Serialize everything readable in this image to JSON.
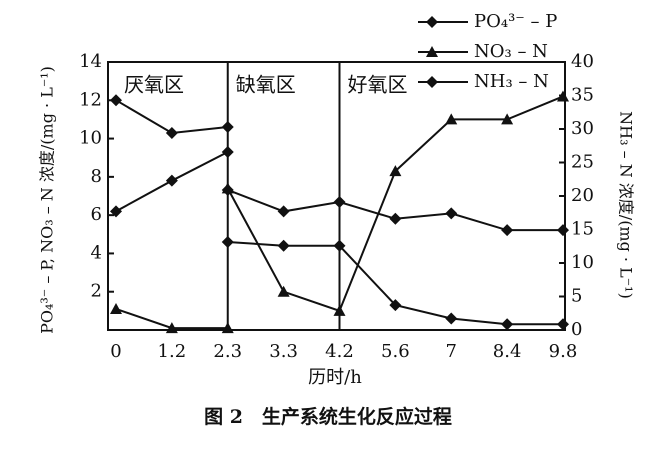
{
  "chart_data": {
    "type": "line",
    "categories": [
      "0",
      "1.2",
      "2.3",
      "3.3",
      "4.2",
      "5.6",
      "7",
      "8.4",
      "9.8"
    ],
    "x_label": "历时/h",
    "y_label": "PO₄³⁻ – P, NO₃ – N 浓度/(mg · L⁻¹)",
    "y2_label": "NH₃ – N 浓度/(mg · L⁻¹)",
    "caption": "图 2　生产系统生化反应过程",
    "ylim": [
      0,
      14
    ],
    "yticks": [
      2,
      4,
      6,
      8,
      10,
      12,
      14
    ],
    "y2lim": [
      0,
      40
    ],
    "y2ticks": [
      0,
      5,
      10,
      15,
      20,
      25,
      30,
      35,
      40
    ],
    "zones": [
      {
        "label": "厌氧区",
        "start": 0
      },
      {
        "label": "缺氧区",
        "start": 2.3
      },
      {
        "label": "好氧区",
        "start": 4.2
      }
    ],
    "series": [
      {
        "name": "PO₄³⁻ – P",
        "color": "#111111",
        "marker": "diamond",
        "segments": [
          [
            6.2,
            7.8,
            9.3,
            null,
            null,
            null,
            null,
            null,
            null
          ],
          [
            null,
            null,
            4.6,
            4.4,
            4.4,
            1.3,
            0.6,
            0.3,
            0.3
          ]
        ]
      },
      {
        "name": "NO₃ – N",
        "color": "#111111",
        "marker": "triangle",
        "segments": [
          [
            1.1,
            0.1,
            0.1,
            null,
            null,
            null,
            null,
            null,
            null
          ],
          [
            null,
            null,
            7.4,
            2.0,
            1.0,
            8.3,
            11,
            11,
            12.2
          ]
        ]
      },
      {
        "name": "NH₃ – N",
        "color": "#111111",
        "marker": "diamond",
        "axis": "y2",
        "segments": [
          [
            34.3,
            29.4,
            30.3,
            null,
            null,
            null,
            null,
            null,
            null
          ],
          [
            null,
            null,
            20.9,
            17.7,
            19.1,
            16.6,
            17.4,
            14.9,
            14.9
          ]
        ]
      }
    ]
  }
}
